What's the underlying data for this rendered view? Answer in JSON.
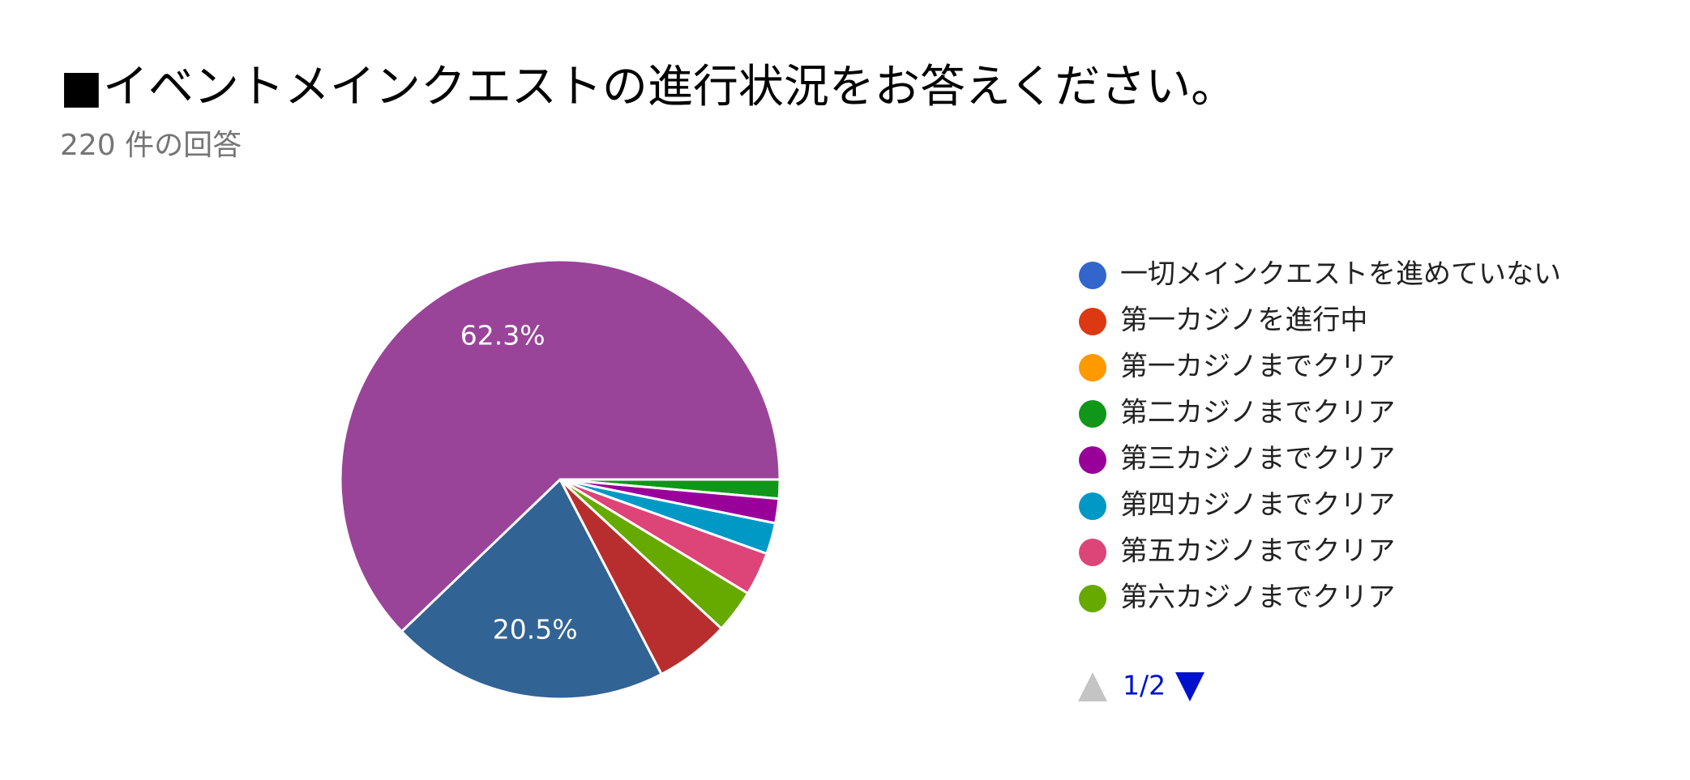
{
  "chart_data": {
    "type": "pie",
    "title": "■イベントメインクエストの進行状況をお答えください。",
    "subtitle": "220 件の回答",
    "categories": [
      "一切メインクエストを進めていない",
      "第一カジノを進行中",
      "第一カジノまでクリア",
      "第二カジノまでクリア",
      "第三カジノまでクリア",
      "第四カジノまでクリア",
      "第五カジノまでクリア",
      "第六カジノまでクリア",
      null,
      null,
      null
    ],
    "values": [
      0,
      0,
      0,
      1.4,
      1.8,
      2.3,
      3.2,
      3.2,
      5.5,
      20.5,
      62.3
    ],
    "value_labels": [
      null,
      null,
      null,
      null,
      null,
      null,
      null,
      null,
      null,
      "20.5%",
      "62.3%"
    ],
    "colors": [
      "#3366cc",
      "#dc3912",
      "#ff9900",
      "#109618",
      "#990099",
      "#0099c6",
      "#dd4477",
      "#66aa00",
      "#b82e2e",
      "#316395",
      "#994499"
    ],
    "legend_page": "1/2"
  }
}
